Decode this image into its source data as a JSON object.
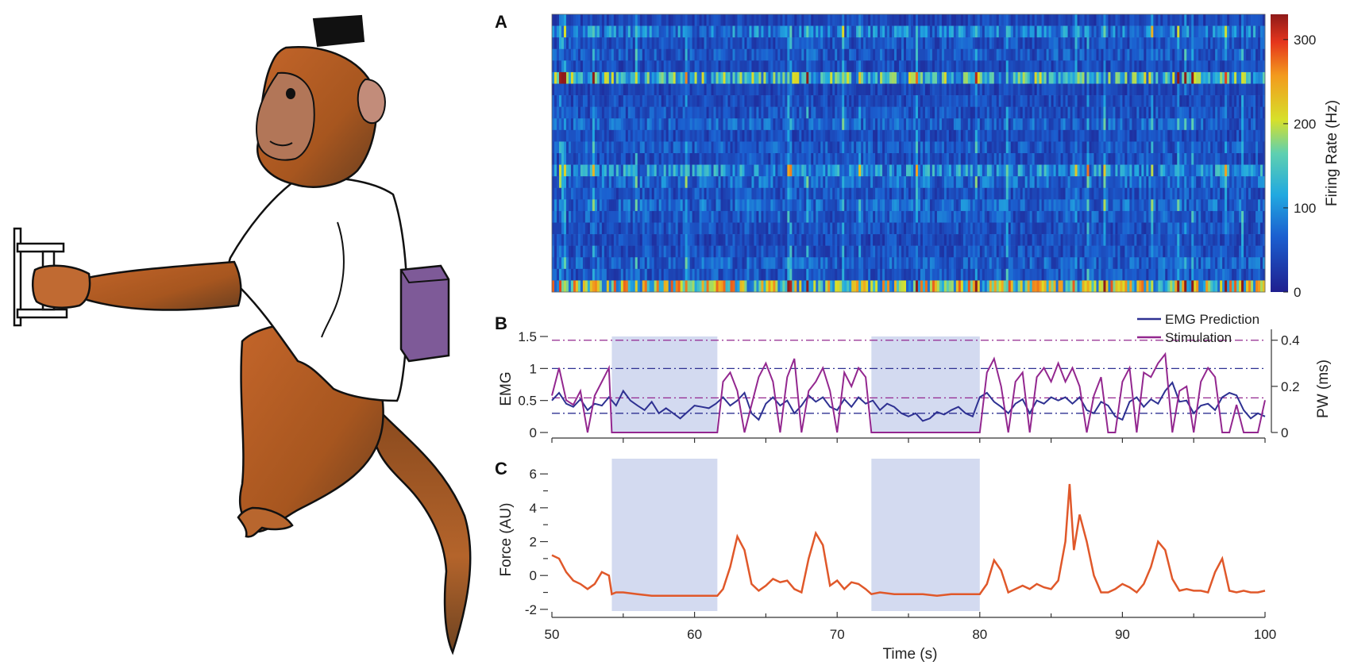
{
  "illustration": {
    "icon": "monkey-pulling-handle-illustration"
  },
  "panel_labels": {
    "a": "A",
    "b": "B",
    "c": "C"
  },
  "colors": {
    "shaded_block": "#d3daf0",
    "emg": "#2e3192",
    "stim": "#93278f",
    "force": "#e0582a",
    "axis": "#333333"
  },
  "shaded_intervals": [
    [
      54.2,
      61.6
    ],
    [
      72.4,
      80.0
    ]
  ],
  "chart_data": [
    {
      "panel": "A",
      "type": "heatmap",
      "title": "",
      "colorbar_label": "Firing Rate (Hz)",
      "colorbar_ticks": [
        "0",
        "100",
        "200",
        "300"
      ],
      "clim": [
        0,
        330
      ],
      "colormap": "jet",
      "n_rows": 24,
      "xlim": [
        50,
        100
      ],
      "row_mean_rates_hz": [
        35,
        75,
        45,
        50,
        40,
        120,
        35,
        40,
        45,
        55,
        40,
        50,
        45,
        85,
        60,
        45,
        60,
        50,
        45,
        40,
        45,
        55,
        50,
        160
      ]
    },
    {
      "panel": "B",
      "type": "line",
      "ylabel_left": "EMG",
      "ylabel_right": "PW (ms)",
      "y_ticks_left": [
        "0",
        "0.5",
        "1",
        "1.5"
      ],
      "y_ticks_right": [
        "0",
        "0.2",
        "0.4"
      ],
      "ylim_left": [
        0,
        1.55
      ],
      "ylim_right": [
        0,
        0.43
      ],
      "xlim": [
        50,
        100
      ],
      "legend": {
        "position": "top-right",
        "entries": [
          "EMG Prediction",
          "Stimulation"
        ]
      },
      "reference_lines": [
        {
          "axis": "left",
          "value": 1.0,
          "series": "EMG Prediction"
        },
        {
          "axis": "left",
          "value": 0.3,
          "series": "EMG Prediction"
        },
        {
          "axis": "right",
          "value": 0.4,
          "series": "Stimulation"
        },
        {
          "axis": "right",
          "value": 0.15,
          "series": "Stimulation"
        }
      ],
      "series": [
        {
          "name": "EMG Prediction",
          "axis": "left",
          "x": [
            50,
            50.5,
            51,
            51.5,
            52,
            52.5,
            53,
            53.5,
            54,
            54.5,
            55,
            55.5,
            56,
            56.5,
            57,
            57.5,
            58,
            58.5,
            59,
            59.5,
            60,
            60.5,
            61,
            61.5,
            62,
            62.5,
            63,
            63.5,
            64,
            64.5,
            65,
            65.5,
            66,
            66.5,
            67,
            67.5,
            68,
            68.5,
            69,
            69.5,
            70,
            70.5,
            71,
            71.5,
            72,
            72.5,
            73,
            73.5,
            74,
            74.5,
            75,
            75.5,
            76,
            76.5,
            77,
            77.5,
            78,
            78.5,
            79,
            79.5,
            80,
            80.5,
            81,
            81.5,
            82,
            82.5,
            83,
            83.5,
            84,
            84.5,
            85,
            85.5,
            86,
            86.5,
            87,
            87.5,
            88,
            88.5,
            89,
            89.5,
            90,
            90.5,
            91,
            91.5,
            92,
            92.5,
            93,
            93.5,
            94,
            94.5,
            95,
            95.5,
            96,
            96.5,
            97,
            97.5,
            98,
            98.5,
            99,
            99.5,
            100
          ],
          "values": [
            0.5,
            0.62,
            0.45,
            0.4,
            0.52,
            0.35,
            0.45,
            0.42,
            0.55,
            0.42,
            0.65,
            0.5,
            0.42,
            0.35,
            0.48,
            0.3,
            0.38,
            0.3,
            0.22,
            0.32,
            0.42,
            0.4,
            0.38,
            0.45,
            0.55,
            0.42,
            0.5,
            0.62,
            0.3,
            0.2,
            0.45,
            0.55,
            0.42,
            0.5,
            0.3,
            0.42,
            0.58,
            0.48,
            0.55,
            0.4,
            0.35,
            0.52,
            0.4,
            0.55,
            0.45,
            0.5,
            0.35,
            0.45,
            0.4,
            0.3,
            0.25,
            0.3,
            0.18,
            0.22,
            0.32,
            0.28,
            0.35,
            0.4,
            0.3,
            0.25,
            0.55,
            0.62,
            0.48,
            0.4,
            0.3,
            0.45,
            0.52,
            0.3,
            0.5,
            0.45,
            0.55,
            0.5,
            0.55,
            0.45,
            0.55,
            0.35,
            0.3,
            0.48,
            0.42,
            0.25,
            0.2,
            0.48,
            0.55,
            0.4,
            0.52,
            0.45,
            0.65,
            0.78,
            0.48,
            0.5,
            0.3,
            0.42,
            0.45,
            0.35,
            0.55,
            0.62,
            0.58,
            0.35,
            0.22,
            0.3,
            0.25
          ]
        },
        {
          "name": "Stimulation",
          "axis": "right",
          "x": [
            50,
            50.5,
            51,
            51.5,
            52,
            52.5,
            53,
            53.5,
            54,
            54.2,
            61.6,
            62,
            62.5,
            63,
            63.5,
            64,
            64.5,
            65,
            65.5,
            66,
            66.5,
            67,
            67.5,
            68,
            68.5,
            69,
            69.5,
            70,
            70.5,
            71,
            71.5,
            72,
            72.4,
            80,
            80.5,
            81,
            81.5,
            82,
            82.5,
            83,
            83.5,
            84,
            84.5,
            85,
            85.5,
            86,
            86.5,
            87,
            87.5,
            88,
            88.5,
            89,
            89.5,
            90,
            90.5,
            91,
            91.5,
            92,
            92.5,
            93,
            93.5,
            94,
            94.5,
            95,
            95.5,
            96,
            96.5,
            97,
            97.5,
            98,
            98.5,
            99,
            99.5,
            100
          ],
          "values": [
            0.16,
            0.28,
            0.14,
            0.12,
            0.18,
            0.0,
            0.16,
            0.22,
            0.28,
            0.0,
            0.0,
            0.22,
            0.26,
            0.18,
            0.0,
            0.12,
            0.24,
            0.3,
            0.22,
            0.0,
            0.24,
            0.32,
            0.0,
            0.18,
            0.22,
            0.28,
            0.18,
            0.0,
            0.26,
            0.2,
            0.28,
            0.24,
            0.0,
            0.0,
            0.26,
            0.32,
            0.2,
            0.0,
            0.22,
            0.26,
            0.0,
            0.24,
            0.28,
            0.22,
            0.3,
            0.22,
            0.28,
            0.2,
            0.0,
            0.16,
            0.24,
            0.0,
            0.0,
            0.22,
            0.28,
            0.0,
            0.26,
            0.24,
            0.3,
            0.34,
            0.0,
            0.18,
            0.2,
            0.0,
            0.22,
            0.28,
            0.24,
            0.0,
            0.0,
            0.12,
            0.0,
            0.0,
            0.0,
            0.14
          ]
        }
      ]
    },
    {
      "panel": "C",
      "type": "line",
      "ylabel": "Force (AU)",
      "xlabel": "Time (s)",
      "y_ticks": [
        "-2",
        "0",
        "2",
        "4",
        "6"
      ],
      "x_ticks": [
        "50",
        "60",
        "70",
        "80",
        "90",
        "100"
      ],
      "ylim": [
        -2.1,
        6.9
      ],
      "xlim": [
        50,
        100
      ],
      "series": [
        {
          "name": "Force",
          "x": [
            50,
            50.5,
            51,
            51.5,
            52,
            52.5,
            53,
            53.5,
            54,
            54.2,
            54.5,
            55,
            56,
            57,
            58,
            59,
            60,
            61,
            61.6,
            62,
            62.5,
            63,
            63.5,
            64,
            64.5,
            65,
            65.5,
            66,
            66.5,
            67,
            67.5,
            68,
            68.5,
            69,
            69.5,
            70,
            70.5,
            71,
            71.5,
            72,
            72.4,
            73,
            74,
            75,
            76,
            77,
            78,
            79,
            80,
            80.5,
            81,
            81.5,
            82,
            82.5,
            83,
            83.5,
            84,
            84.5,
            85,
            85.5,
            86,
            86.3,
            86.6,
            87,
            87.5,
            88,
            88.5,
            89,
            89.5,
            90,
            90.5,
            91,
            91.5,
            92,
            92.5,
            93,
            93.5,
            94,
            94.5,
            95,
            95.5,
            96,
            96.5,
            97,
            97.5,
            98,
            98.5,
            99,
            99.5,
            100
          ],
          "values": [
            1.2,
            1.0,
            0.2,
            -0.3,
            -0.5,
            -0.8,
            -0.5,
            0.2,
            0.0,
            -1.1,
            -1.0,
            -1.0,
            -1.1,
            -1.2,
            -1.2,
            -1.2,
            -1.2,
            -1.2,
            -1.2,
            -0.8,
            0.5,
            2.3,
            1.5,
            -0.5,
            -0.9,
            -0.6,
            -0.2,
            -0.4,
            -0.3,
            -0.8,
            -1.0,
            1.0,
            2.5,
            1.8,
            -0.6,
            -0.3,
            -0.8,
            -0.4,
            -0.5,
            -0.8,
            -1.1,
            -1.0,
            -1.1,
            -1.1,
            -1.1,
            -1.2,
            -1.1,
            -1.1,
            -1.1,
            -0.5,
            0.9,
            0.3,
            -1.0,
            -0.8,
            -0.6,
            -0.8,
            -0.5,
            -0.7,
            -0.8,
            -0.3,
            2.0,
            5.4,
            1.5,
            3.6,
            2.0,
            0.0,
            -1.0,
            -1.0,
            -0.8,
            -0.5,
            -0.7,
            -1.0,
            -0.5,
            0.5,
            2.0,
            1.5,
            -0.2,
            -0.9,
            -0.8,
            -0.9,
            -0.9,
            -1.0,
            0.2,
            1.0,
            -0.9,
            -1.0,
            -0.9,
            -1.0,
            -1.0,
            -0.9
          ]
        }
      ]
    }
  ]
}
